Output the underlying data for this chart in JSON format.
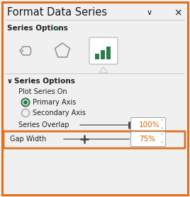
{
  "title": "Format Data Series",
  "bg_color": "#f0f0f0",
  "border_color": "#e07020",
  "title_fontsize": 10.5,
  "title_color": "#1a1a1a",
  "chevron_color": "#1a1a1a",
  "close_color": "#1a1a1a",
  "series_opts_label": "Series Options",
  "series_opts_chevron_color": "#2196a8",
  "icon_bar_color": "#2d7a4a",
  "icon_box_bg": "#ffffff",
  "icon_box_border": "#c0c0c0",
  "divider_color": "#c8c8c8",
  "section_chevron": "∨",
  "section_label": "Series Options",
  "plot_series_on": "Plot Series On",
  "radio_green": "#2d7a4a",
  "radio_empty": "#aaaaaa",
  "primary_label": "Primary Axis",
  "secondary_label": "Secondary Axis",
  "overlap_label": "Series Overlap",
  "overlap_value": "100%",
  "gap_label": "Gap Width",
  "gap_value": "75%",
  "gap_border_color": "#e07020",
  "text_color": "#222222",
  "slider_color": "#888888",
  "spinbox_bg": "#ffffff",
  "spinbox_border": "#aaaaaa",
  "overlap_value_color": "#cc6600",
  "gap_value_color": "#cc6600"
}
